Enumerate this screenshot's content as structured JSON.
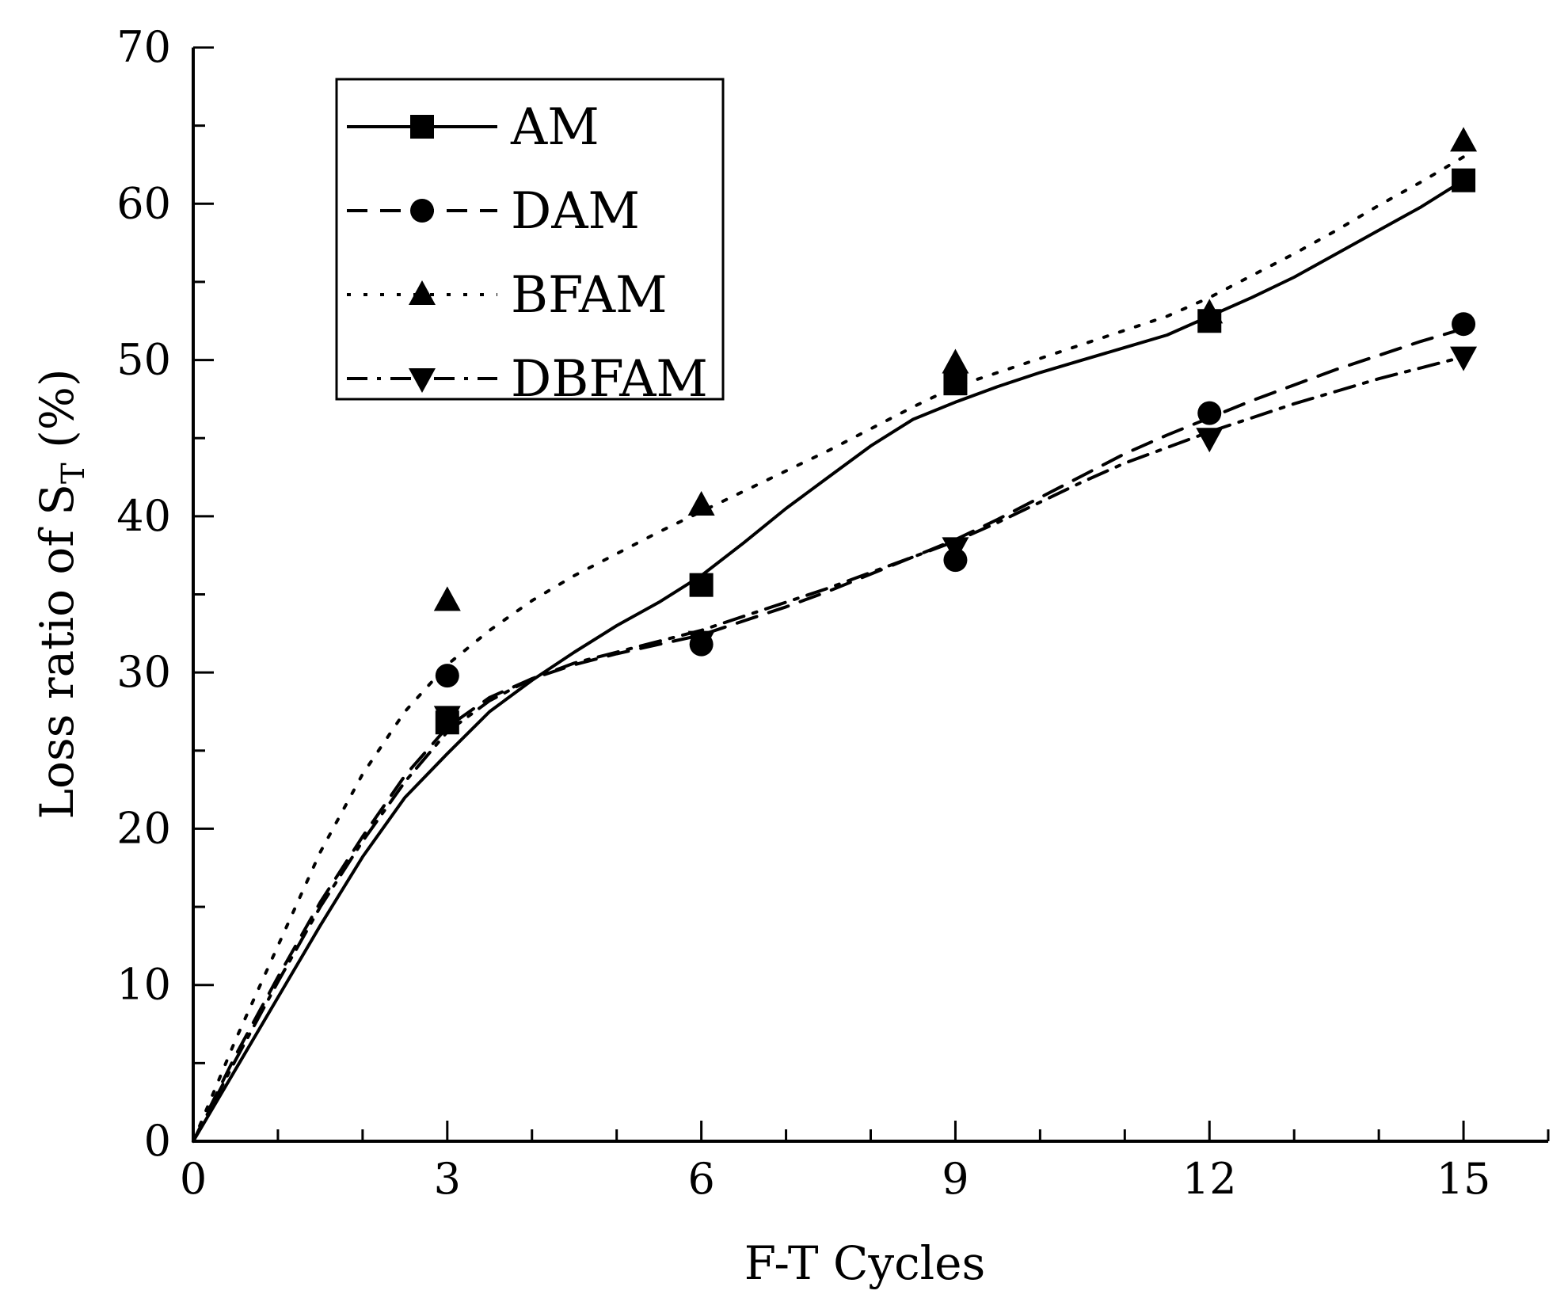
{
  "chart_data": {
    "type": "line",
    "title": "",
    "xlabel": "F-T Cycles",
    "ylabel": {
      "prefix": "Loss ratio of S",
      "subscript": "T",
      "suffix": " (%)"
    },
    "xlim": [
      0,
      16
    ],
    "ylim": [
      0,
      70
    ],
    "x_ticks": [
      0,
      3,
      6,
      9,
      12,
      15
    ],
    "y_ticks": [
      0,
      10,
      20,
      30,
      40,
      50,
      60,
      70
    ],
    "x_minor_step": 1,
    "y_minor_step": 5,
    "x": [
      0,
      3,
      6,
      9,
      12,
      15
    ],
    "grid": false,
    "legend_position": "top-left",
    "series": [
      {
        "name": "AM",
        "marker": "square",
        "line_style": "solid",
        "values": [
          0,
          26.8,
          35.6,
          48.5,
          52.5,
          61.5
        ],
        "fit": [
          [
            0,
            0
          ],
          [
            0.5,
            4.6
          ],
          [
            1,
            9.2
          ],
          [
            1.5,
            13.8
          ],
          [
            2,
            18.2
          ],
          [
            2.5,
            22.0
          ],
          [
            3,
            24.8
          ],
          [
            3.5,
            27.5
          ],
          [
            4,
            29.5
          ],
          [
            4.5,
            31.3
          ],
          [
            5,
            33.0
          ],
          [
            5.5,
            34.5
          ],
          [
            6,
            36.2
          ],
          [
            6.5,
            38.3
          ],
          [
            7,
            40.5
          ],
          [
            7.5,
            42.5
          ],
          [
            8,
            44.5
          ],
          [
            8.5,
            46.2
          ],
          [
            9,
            47.3
          ],
          [
            9.5,
            48.3
          ],
          [
            10,
            49.2
          ],
          [
            10.5,
            50.0
          ],
          [
            11,
            50.8
          ],
          [
            11.5,
            51.6
          ],
          [
            12,
            52.8
          ],
          [
            12.5,
            54.0
          ],
          [
            13,
            55.3
          ],
          [
            13.5,
            56.8
          ],
          [
            14,
            58.3
          ],
          [
            14.5,
            59.8
          ],
          [
            15,
            61.5
          ]
        ]
      },
      {
        "name": "DAM",
        "marker": "circle",
        "line_style": "dashed",
        "values": [
          0,
          29.8,
          31.8,
          37.2,
          46.6,
          52.3
        ],
        "fit": [
          [
            0,
            0
          ],
          [
            0.5,
            5.5
          ],
          [
            1,
            10.5
          ],
          [
            1.5,
            15.3
          ],
          [
            2,
            19.5
          ],
          [
            2.5,
            23.4
          ],
          [
            3,
            26.5
          ],
          [
            3.5,
            28.4
          ],
          [
            4,
            29.6
          ],
          [
            4.5,
            30.5
          ],
          [
            5,
            31.2
          ],
          [
            5.5,
            31.8
          ],
          [
            6,
            32.4
          ],
          [
            6.5,
            33.3
          ],
          [
            7,
            34.2
          ],
          [
            7.5,
            35.2
          ],
          [
            8,
            36.3
          ],
          [
            8.5,
            37.4
          ],
          [
            9,
            38.5
          ],
          [
            9.5,
            39.8
          ],
          [
            10,
            41.2
          ],
          [
            10.5,
            42.6
          ],
          [
            11,
            44.0
          ],
          [
            11.5,
            45.2
          ],
          [
            12,
            46.3
          ],
          [
            12.5,
            47.4
          ],
          [
            13,
            48.4
          ],
          [
            13.5,
            49.4
          ],
          [
            14,
            50.3
          ],
          [
            14.5,
            51.2
          ],
          [
            15,
            52.0
          ]
        ]
      },
      {
        "name": "BFAM",
        "marker": "triangle-up",
        "line_style": "dotted",
        "values": [
          0,
          34.6,
          40.7,
          49.8,
          53.0,
          64.0
        ],
        "fit": [
          [
            0,
            0
          ],
          [
            0.5,
            6.5
          ],
          [
            1,
            12.5
          ],
          [
            1.5,
            18.5
          ],
          [
            2,
            23.5
          ],
          [
            2.5,
            27.5
          ],
          [
            3,
            30.5
          ],
          [
            3.5,
            32.7
          ],
          [
            4,
            34.6
          ],
          [
            4.5,
            36.2
          ],
          [
            5,
            37.6
          ],
          [
            5.5,
            39.0
          ],
          [
            6,
            40.3
          ],
          [
            6.5,
            41.6
          ],
          [
            7,
            42.9
          ],
          [
            7.5,
            44.2
          ],
          [
            8,
            45.6
          ],
          [
            8.5,
            47.0
          ],
          [
            9,
            48.3
          ],
          [
            9.5,
            49.2
          ],
          [
            10,
            50.1
          ],
          [
            10.5,
            51.0
          ],
          [
            11,
            51.9
          ],
          [
            11.5,
            52.8
          ],
          [
            12,
            54.0
          ],
          [
            12.5,
            55.4
          ],
          [
            13,
            56.8
          ],
          [
            13.5,
            58.3
          ],
          [
            14,
            59.9
          ],
          [
            14.5,
            61.4
          ],
          [
            15,
            63.0
          ]
        ]
      },
      {
        "name": "DBFAM",
        "marker": "triangle-down",
        "line_style": "dashdot",
        "values": [
          0,
          27.2,
          32.0,
          38.0,
          45.0,
          50.2
        ],
        "fit": [
          [
            0,
            0
          ],
          [
            0.5,
            5.2
          ],
          [
            1,
            10.2
          ],
          [
            1.5,
            15.0
          ],
          [
            2,
            19.2
          ],
          [
            2.5,
            23.0
          ],
          [
            3,
            26.2
          ],
          [
            3.5,
            28.2
          ],
          [
            4,
            29.6
          ],
          [
            4.5,
            30.6
          ],
          [
            5,
            31.3
          ],
          [
            5.5,
            32.0
          ],
          [
            6,
            32.7
          ],
          [
            6.5,
            33.6
          ],
          [
            7,
            34.5
          ],
          [
            7.5,
            35.4
          ],
          [
            8,
            36.4
          ],
          [
            8.5,
            37.4
          ],
          [
            9,
            38.4
          ],
          [
            9.5,
            39.6
          ],
          [
            10,
            40.9
          ],
          [
            10.5,
            42.2
          ],
          [
            11,
            43.4
          ],
          [
            11.5,
            44.4
          ],
          [
            12,
            45.4
          ],
          [
            12.5,
            46.3
          ],
          [
            13,
            47.2
          ],
          [
            13.5,
            48.0
          ],
          [
            14,
            48.8
          ],
          [
            14.5,
            49.5
          ],
          [
            15,
            50.2
          ]
        ]
      }
    ]
  }
}
